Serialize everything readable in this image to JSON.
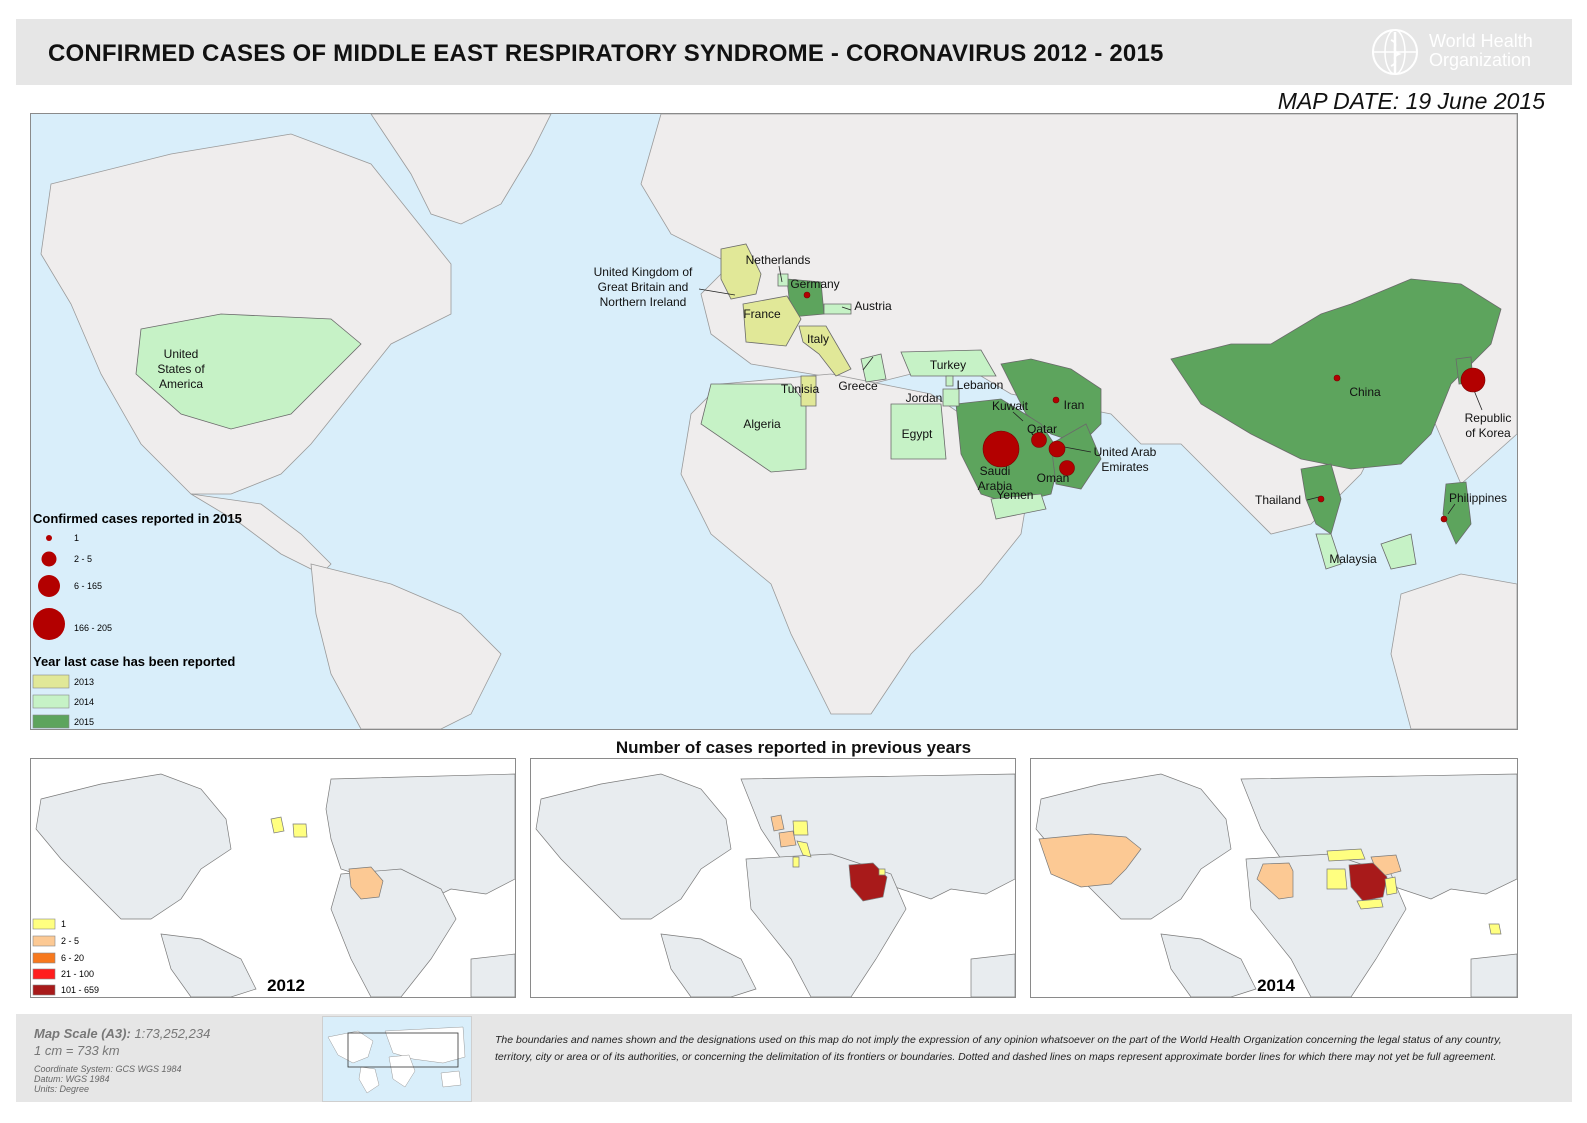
{
  "header": {
    "title": "CONFIRMED CASES OF MIDDLE EAST RESPIRATORY SYNDROME - CORONAVIRUS 2012 - 2015",
    "org_name_line1": "World Health",
    "org_name_line2": "Organization",
    "map_date": "MAP DATE: 19 June 2015"
  },
  "colors": {
    "ocean": "#d9eefa",
    "land": "#efeded",
    "year_2013": "#e1e898",
    "year_2014": "#c6f2c6",
    "year_2015": "#5da45d",
    "case_circle": "#b30000",
    "inset_land": "#e8ecef",
    "cases_1": "#ffff80",
    "cases_2_5": "#fcc994",
    "cases_6_20": "#f7791e",
    "cases_21_100": "#ff1d1d",
    "cases_101_659": "#a81a1a"
  },
  "country_labels": {
    "usa": "United\nStates of\nAmerica",
    "uk": "United Kingdom of\nGreat Britain and\nNorthern Ireland",
    "netherlands": "Netherlands",
    "germany": "Germany",
    "austria": "Austria",
    "france": "France",
    "italy": "Italy",
    "tunisia": "Tunisia",
    "greece": "Greece",
    "algeria": "Algeria",
    "turkey": "Turkey",
    "lebanon": "Lebanon",
    "jordan": "Jordan",
    "egypt": "Egypt",
    "kuwait": "Kuwait",
    "iran": "Iran",
    "qatar": "Qatar",
    "uae": "United Arab\nEmirates",
    "saudi_arabia": "Saudi\nArabia",
    "oman": "Oman",
    "yemen": "Yemen",
    "china": "China",
    "korea": "Republic\nof Korea",
    "thailand": "Thailand",
    "philippines": "Philippines",
    "malaysia": "Malaysia"
  },
  "legend": {
    "cases_title": "Confirmed cases reported in 2015",
    "cases_bins": [
      "1",
      "2 - 5",
      "6 - 165",
      "166 - 205"
    ],
    "year_title": "Year last case has been reported",
    "years": [
      "2013",
      "2014",
      "2015"
    ]
  },
  "cases_2015": [
    {
      "country": "Saudi Arabia",
      "bin": "166 - 205"
    },
    {
      "country": "Republic of Korea",
      "bin": "166 - 205"
    },
    {
      "country": "Qatar",
      "bin": "2 - 5"
    },
    {
      "country": "United Arab Emirates",
      "bin": "2 - 5"
    },
    {
      "country": "Oman",
      "bin": "2 - 5"
    },
    {
      "country": "Germany",
      "bin": "1"
    },
    {
      "country": "Iran",
      "bin": "1"
    },
    {
      "country": "China",
      "bin": "1"
    },
    {
      "country": "Thailand",
      "bin": "1"
    },
    {
      "country": "Philippines",
      "bin": "1"
    }
  ],
  "insets": {
    "section_title": "Number of cases reported in previous years",
    "legend_bins": [
      "1",
      "2 - 5",
      "6 - 20",
      "21 - 100",
      "101 - 659"
    ],
    "maps": [
      {
        "year_label": "2012"
      },
      {
        "year_label": ""
      },
      {
        "year_label": "2014"
      }
    ]
  },
  "footer": {
    "scale_label": "Map Scale (A3):",
    "scale_value": "1:73,252,234",
    "scale_cm": "1 cm = 733 km",
    "coord_system": "Coordinate System: GCS WGS 1984",
    "datum": "Datum: WGS 1984",
    "units": "Units: Degree",
    "disclaimer": "The boundaries and names shown and the designations used on this map do not imply the expression of any opinion whatsoever on the part of the World Health Organization concerning the legal status of any country, territory, city or area or of its authorities, or concerning the delimitation of its frontiers or boundaries. Dotted and dashed lines on maps represent approximate border lines for which there may not yet be full agreement."
  }
}
